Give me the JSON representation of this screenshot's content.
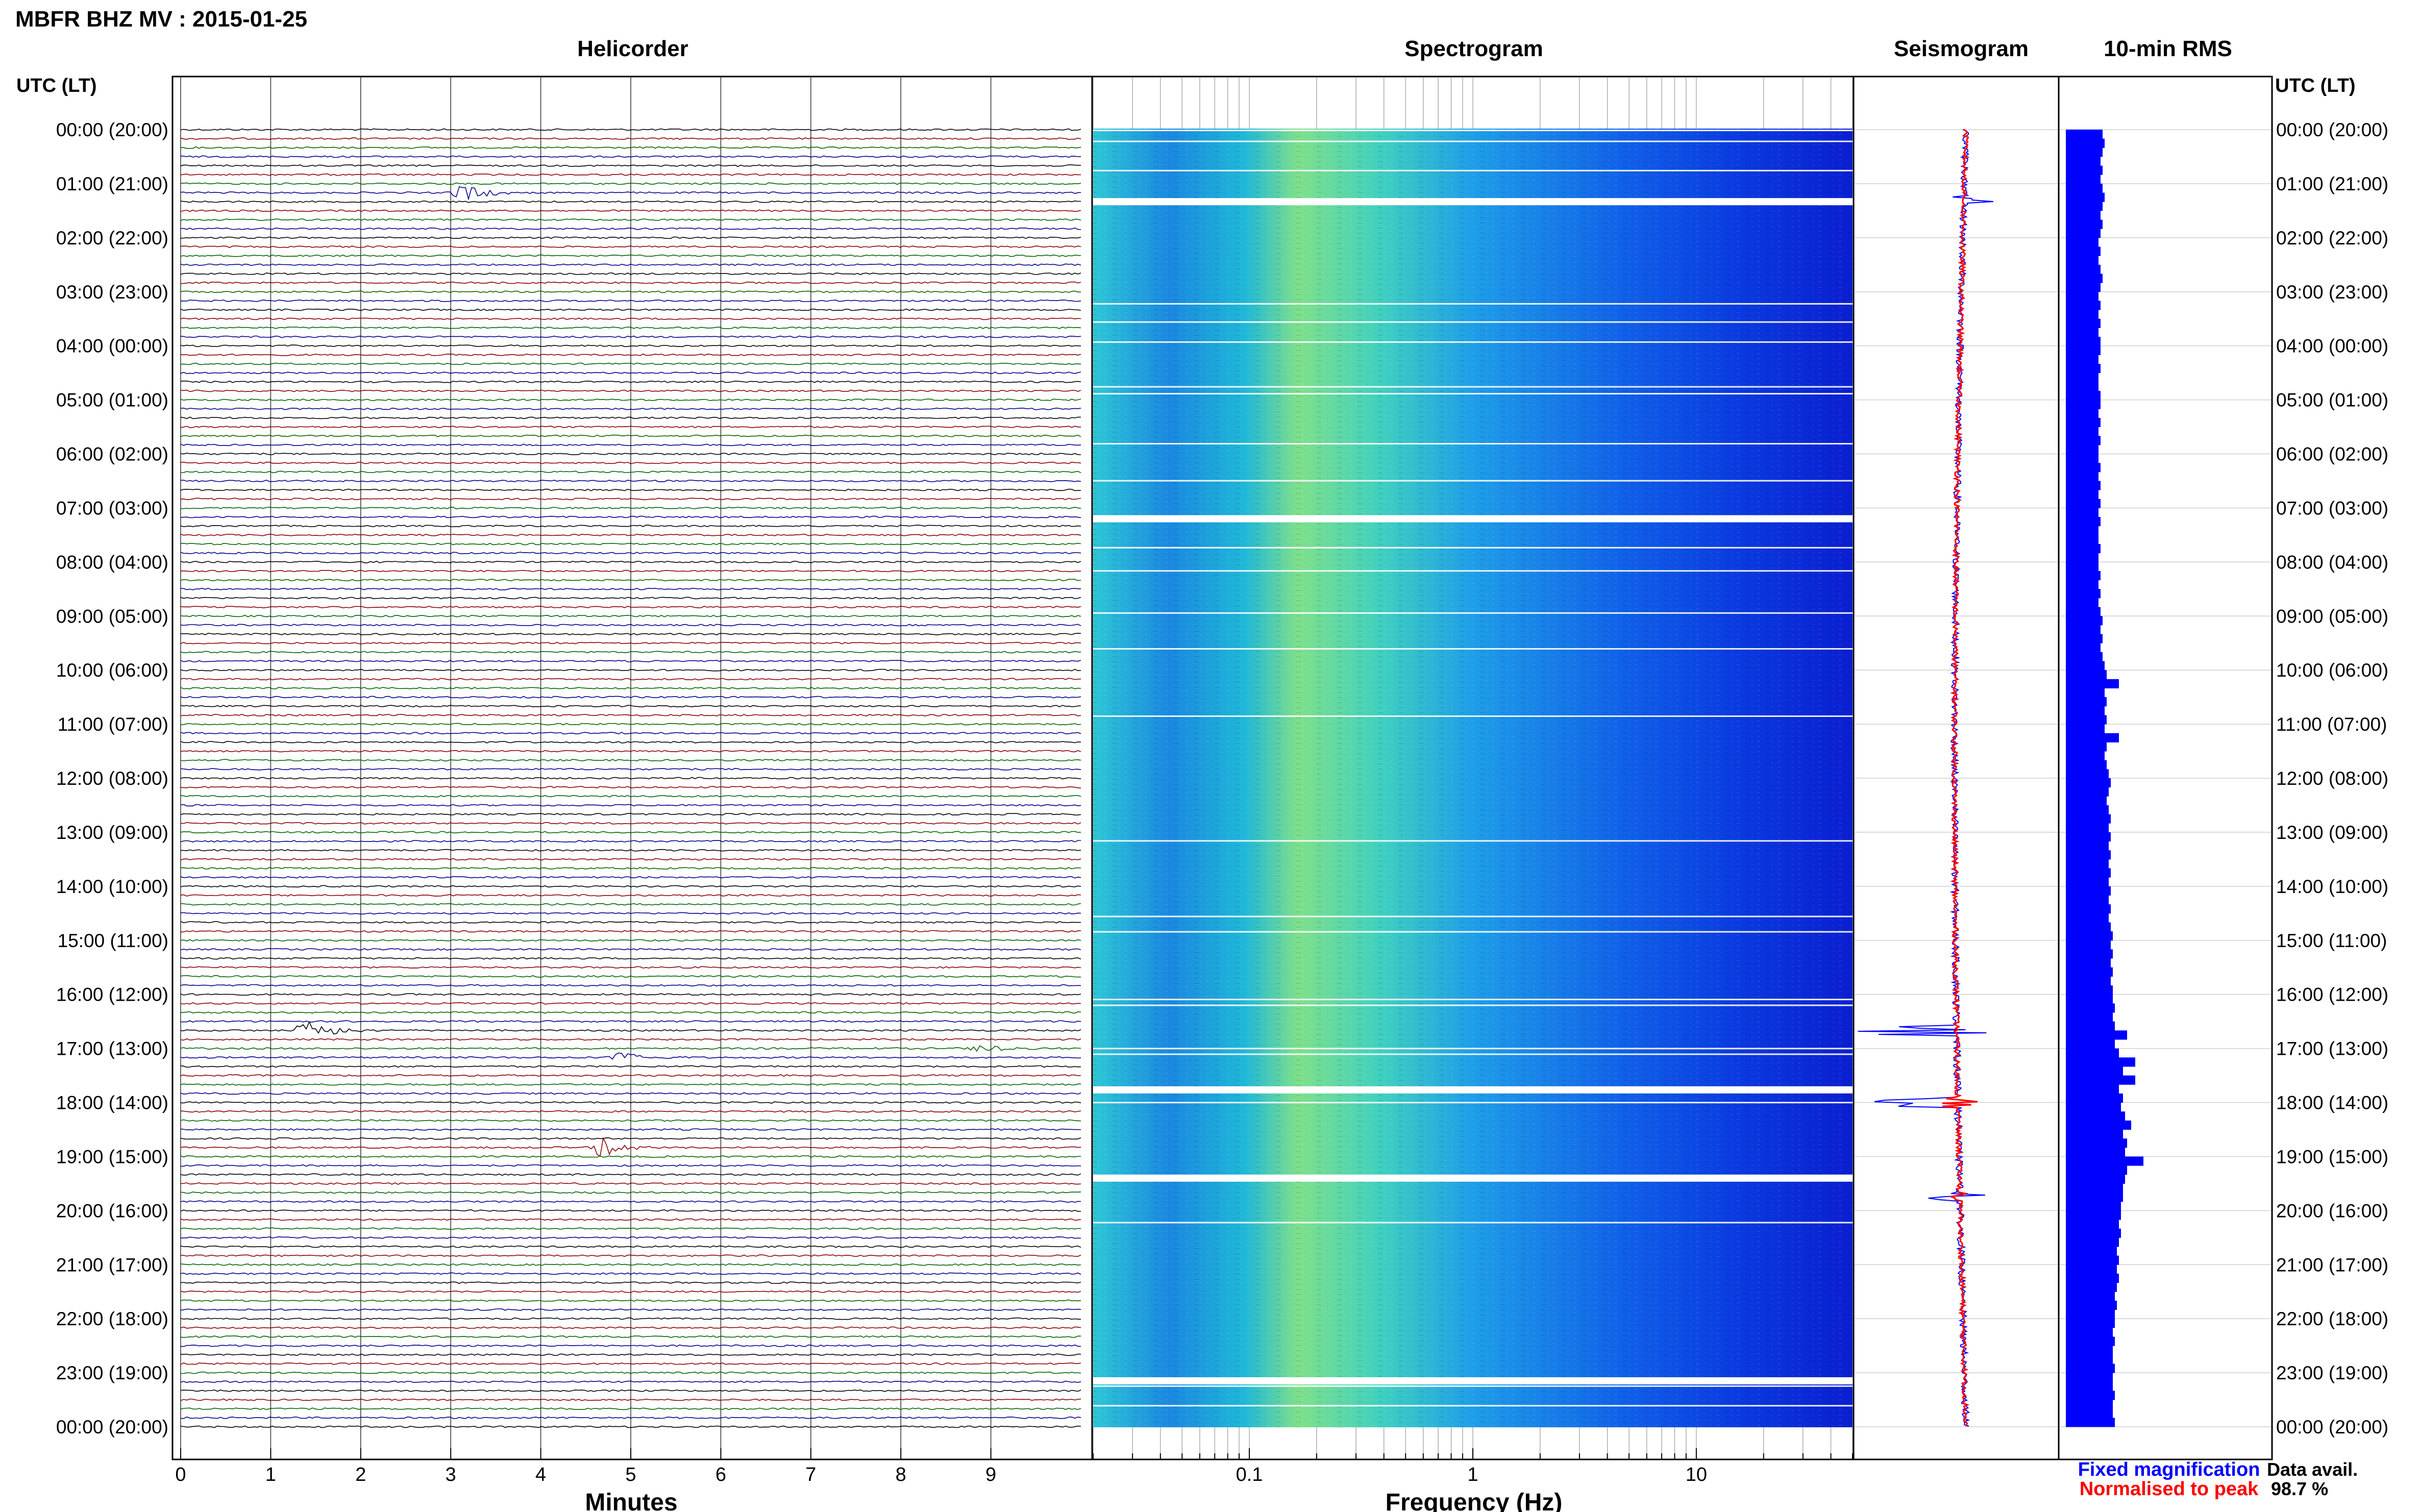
{
  "header": {
    "title": "MBFR BHZ MV : 2015-01-25",
    "utc_label_left": "UTC (LT)",
    "utc_label_right": "UTC (LT)"
  },
  "panels": {
    "helicorder": "Helicorder",
    "spectrogram": "Spectrogram",
    "seismogram": "Seismogram",
    "rms": "10-min RMS"
  },
  "axes": {
    "minutes_label": "Minutes",
    "frequency_label": "Frequency (Hz)",
    "minute_ticks": [
      "0",
      "1",
      "2",
      "3",
      "4",
      "5",
      "6",
      "7",
      "8",
      "9"
    ],
    "frequency_ticks": [
      {
        "value": 0.1,
        "label": "0.1"
      },
      {
        "value": 1,
        "label": "1"
      },
      {
        "value": 10,
        "label": "10"
      }
    ]
  },
  "time_labels": [
    "00:00 (20:00)",
    "01:00 (21:00)",
    "02:00 (22:00)",
    "03:00 (23:00)",
    "04:00 (00:00)",
    "05:00 (01:00)",
    "06:00 (02:00)",
    "07:00 (03:00)",
    "08:00 (04:00)",
    "09:00 (05:00)",
    "10:00 (06:00)",
    "11:00 (07:00)",
    "12:00 (08:00)",
    "13:00 (09:00)",
    "14:00 (10:00)",
    "15:00 (11:00)",
    "16:00 (12:00)",
    "17:00 (13:00)",
    "18:00 (14:00)",
    "19:00 (15:00)",
    "20:00 (16:00)",
    "21:00 (17:00)",
    "22:00 (18:00)",
    "23:00 (19:00)",
    "00:00 (20:00)"
  ],
  "legend": {
    "fixed": "Fixed magnification",
    "normalised": "Normalised to peak",
    "data_avail_label": "Data avail.",
    "data_avail_value": "98.7 %"
  },
  "colors": {
    "trace_cycle": [
      "#000000",
      "#8b0000",
      "#006400",
      "#00008b"
    ],
    "seismogram_fixed": "#0000ff",
    "seismogram_normalised": "#ff0000",
    "rms_bar": "#0000ff",
    "legend_fixed": "#0000ff",
    "legend_normalised": "#ff0000"
  },
  "chart_data": {
    "type": "helicorder",
    "station": "MBFR BHZ MV",
    "date": "2015-01-25",
    "hours": 24,
    "traces_per_hour": 6,
    "minutes_per_trace": 10,
    "frequency_range_hz": [
      0.02,
      50
    ],
    "events": [
      {
        "trace": 100,
        "minute": 1.3,
        "amplitude": 1.0
      },
      {
        "trace": 103,
        "minute": 4.8,
        "amplitude": 0.45
      },
      {
        "trace": 102,
        "minute": 8.8,
        "amplitude": 0.3
      },
      {
        "trace": 113,
        "minute": 4.6,
        "amplitude": 0.6
      },
      {
        "trace": 7,
        "minute": 3.05,
        "amplitude": 0.55
      }
    ],
    "rms_10min": [
      0.18,
      0.19,
      0.18,
      0.17,
      0.18,
      0.17,
      0.18,
      0.19,
      0.18,
      0.17,
      0.18,
      0.17,
      0.16,
      0.17,
      0.16,
      0.17,
      0.18,
      0.17,
      0.16,
      0.17,
      0.16,
      0.17,
      0.16,
      0.17,
      0.17,
      0.16,
      0.17,
      0.16,
      0.16,
      0.17,
      0.17,
      0.16,
      0.17,
      0.16,
      0.17,
      0.16,
      0.16,
      0.17,
      0.16,
      0.17,
      0.16,
      0.17,
      0.16,
      0.17,
      0.16,
      0.16,
      0.17,
      0.16,
      0.16,
      0.17,
      0.16,
      0.17,
      0.16,
      0.17,
      0.18,
      0.17,
      0.18,
      0.17,
      0.18,
      0.19,
      0.2,
      0.26,
      0.19,
      0.2,
      0.19,
      0.2,
      0.19,
      0.26,
      0.2,
      0.19,
      0.2,
      0.21,
      0.22,
      0.21,
      0.2,
      0.21,
      0.22,
      0.21,
      0.22,
      0.21,
      0.22,
      0.21,
      0.22,
      0.21,
      0.22,
      0.21,
      0.22,
      0.21,
      0.22,
      0.23,
      0.22,
      0.23,
      0.22,
      0.23,
      0.22,
      0.23,
      0.23,
      0.24,
      0.23,
      0.24,
      0.3,
      0.24,
      0.26,
      0.34,
      0.28,
      0.34,
      0.26,
      0.28,
      0.27,
      0.29,
      0.32,
      0.28,
      0.3,
      0.29,
      0.38,
      0.3,
      0.29,
      0.28,
      0.28,
      0.27,
      0.27,
      0.26,
      0.27,
      0.26,
      0.25,
      0.26,
      0.25,
      0.26,
      0.25,
      0.24,
      0.25,
      0.24,
      0.24,
      0.23,
      0.24,
      0.23,
      0.23,
      0.24,
      0.23,
      0.23,
      0.24,
      0.23,
      0.23,
      0.24
    ]
  }
}
